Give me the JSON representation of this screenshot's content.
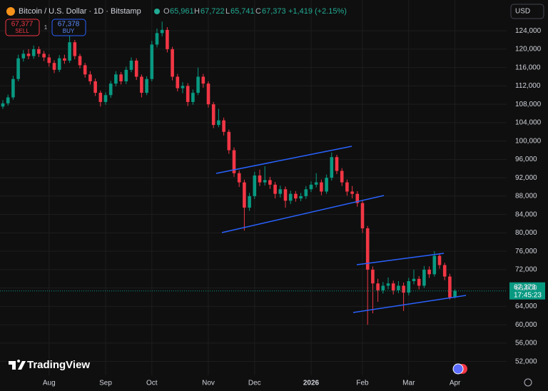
{
  "legend": {
    "symbol": "Bitcoin / U.S. Dollar · 1D · Bitstamp",
    "open_label": "O",
    "open": "65,961",
    "high_label": "H",
    "high": "67,722",
    "low_label": "L",
    "low": "65,741",
    "close_label": "C",
    "close": "67,373",
    "change": "+1,419 (+2.15%)"
  },
  "trade": {
    "sell_price": "67,377",
    "sell": "SELL",
    "spread": "1",
    "buy_price": "67,378",
    "buy": "BUY"
  },
  "currency": "USD",
  "price_tag": {
    "price": "67,373",
    "countdown": "17:45:23"
  },
  "brand": "TradingView",
  "chart_data": {
    "type": "candlestick",
    "up_color": "#089981",
    "down_color": "#f23645",
    "categories": [
      null,
      null,
      null,
      null,
      null,
      null,
      null,
      null,
      null,
      "Aug",
      null,
      null,
      null,
      null,
      null,
      null,
      null,
      null,
      null,
      null,
      "Sep",
      null,
      null,
      null,
      null,
      null,
      null,
      null,
      null,
      "Oct",
      null,
      null,
      null,
      null,
      null,
      null,
      null,
      null,
      null,
      null,
      "Nov",
      null,
      null,
      null,
      null,
      null,
      null,
      null,
      null,
      "Dec",
      null,
      null,
      null,
      null,
      null,
      null,
      null,
      null,
      null,
      null,
      "2026",
      null,
      null,
      null,
      null,
      null,
      null,
      null,
      null,
      null,
      "Feb",
      null,
      null,
      null,
      null,
      null,
      null,
      null,
      null,
      "Mar",
      null,
      null,
      null,
      null,
      null,
      null,
      null,
      null,
      "Apr"
    ],
    "open": [
      107500,
      108200,
      109500,
      113500,
      118000,
      119000,
      118500,
      120000,
      119000,
      118200,
      117000,
      115500,
      118000,
      117500,
      121500,
      118500,
      116500,
      114500,
      113000,
      110500,
      108500,
      110000,
      112500,
      114500,
      113000,
      115500,
      117500,
      114000,
      110500,
      113500,
      121000,
      123500,
      124200,
      120000,
      114000,
      111500,
      112000,
      108500,
      110500,
      114000,
      112500,
      108000,
      103500,
      104500,
      102000,
      98000,
      93000,
      91000,
      85500,
      88000,
      92500,
      91000,
      91500,
      90500,
      88500,
      89500,
      87000,
      88500,
      87500,
      88000,
      89500,
      90500,
      91000,
      89000,
      92000,
      96500,
      93500,
      91000,
      89000,
      88500,
      86500,
      81000,
      72000,
      69000,
      67500,
      68500,
      69000,
      67500,
      68500,
      67000,
      69500,
      70000,
      68500,
      72000,
      71000,
      75000,
      73000,
      70500,
      65961
    ],
    "high": [
      108900,
      110100,
      114200,
      118800,
      119800,
      120000,
      120800,
      120600,
      119600,
      118900,
      117600,
      118700,
      118800,
      123000,
      122000,
      119000,
      117000,
      115200,
      113600,
      111000,
      110600,
      113100,
      115200,
      115000,
      116200,
      118200,
      118000,
      114500,
      114100,
      121800,
      124500,
      126000,
      124800,
      120500,
      114600,
      112800,
      112600,
      111200,
      116000,
      114600,
      113000,
      108500,
      107000,
      105100,
      102500,
      98600,
      93600,
      91600,
      88700,
      93300,
      93800,
      94500,
      92200,
      91100,
      90300,
      90100,
      89200,
      89100,
      88700,
      90200,
      91200,
      93000,
      91600,
      92700,
      97500,
      97000,
      94100,
      91600,
      90200,
      89100,
      87000,
      81500,
      72700,
      70000,
      69300,
      70300,
      69600,
      69500,
      69200,
      70200,
      72000,
      70600,
      72800,
      72700,
      76000,
      75600,
      73500,
      71100,
      67722
    ],
    "low": [
      107000,
      107700,
      109000,
      113000,
      117300,
      117800,
      117900,
      118300,
      117400,
      116200,
      114800,
      115000,
      116800,
      117000,
      117800,
      115800,
      113800,
      112300,
      109800,
      107500,
      107900,
      109400,
      111900,
      112300,
      112400,
      115000,
      113300,
      109500,
      110000,
      113000,
      120400,
      122800,
      119300,
      113200,
      110800,
      110400,
      107600,
      107900,
      110000,
      111600,
      107300,
      102800,
      103000,
      101200,
      97200,
      92200,
      90000,
      80500,
      84800,
      87400,
      90200,
      90300,
      89600,
      87500,
      87700,
      85500,
      86300,
      86800,
      86900,
      87400,
      88900,
      89900,
      88200,
      88500,
      91400,
      92800,
      90200,
      88100,
      87500,
      85700,
      80000,
      60000,
      62500,
      65000,
      66800,
      67700,
      66600,
      66900,
      63000,
      66400,
      68800,
      67700,
      68000,
      70200,
      70500,
      72200,
      69700,
      65500,
      65741
    ],
    "close": [
      108200,
      109500,
      113500,
      118000,
      119000,
      118500,
      120000,
      119000,
      118200,
      117000,
      115500,
      118000,
      117500,
      121500,
      118500,
      116500,
      114500,
      113000,
      110500,
      108500,
      110000,
      112500,
      114500,
      113000,
      115500,
      117500,
      114000,
      110500,
      113500,
      121000,
      123500,
      124200,
      120000,
      114000,
      111500,
      112000,
      108500,
      110500,
      114000,
      112500,
      108000,
      103500,
      104500,
      102000,
      98000,
      93000,
      91000,
      85500,
      88000,
      92500,
      91000,
      91500,
      90500,
      88500,
      89500,
      87000,
      88500,
      87500,
      88000,
      89500,
      90500,
      91000,
      89000,
      92000,
      96500,
      93500,
      91000,
      89000,
      88500,
      86500,
      81000,
      72000,
      69000,
      67500,
      68500,
      69000,
      67500,
      68500,
      67000,
      69500,
      70000,
      68500,
      72000,
      71000,
      75000,
      73000,
      70500,
      65961,
      67373
    ],
    "ylim": [
      49000,
      130700
    ],
    "yticks": [
      {
        "value": 52000,
        "label": "52,000"
      },
      {
        "value": 56000,
        "label": "56,000"
      },
      {
        "value": 60000,
        "label": "60,000"
      },
      {
        "value": 64000,
        "label": "64,000"
      },
      {
        "value": 68000,
        "label": "68,000"
      },
      {
        "value": 72000,
        "label": "72,000"
      },
      {
        "value": 76000,
        "label": "76,000"
      },
      {
        "value": 80000,
        "label": "80,000"
      },
      {
        "value": 84000,
        "label": "84,000"
      },
      {
        "value": 88000,
        "label": "88,000"
      },
      {
        "value": 92000,
        "label": "92,000"
      },
      {
        "value": 96000,
        "label": "96,000"
      },
      {
        "value": 100000,
        "label": "100,000"
      },
      {
        "value": 104000,
        "label": "104,000"
      },
      {
        "value": 108000,
        "label": "108,000"
      },
      {
        "value": 112000,
        "label": "112,000"
      },
      {
        "value": 116000,
        "label": "116,000"
      },
      {
        "value": 120000,
        "label": "120,000"
      },
      {
        "value": 124000,
        "label": "124,000"
      }
    ],
    "grid": true
  }
}
